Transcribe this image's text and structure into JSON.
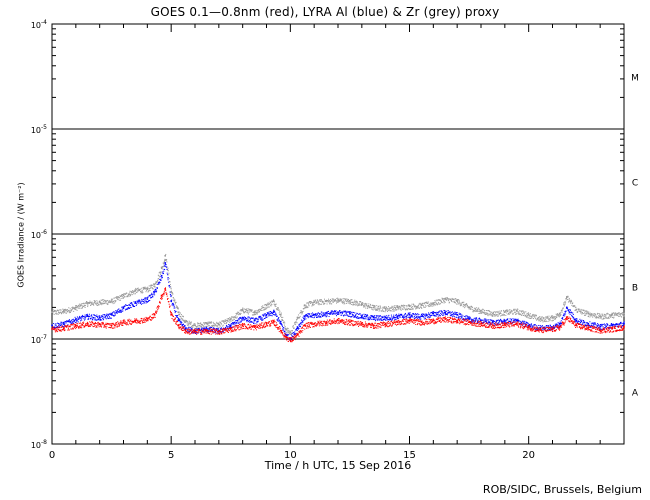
{
  "chart_data": {
    "type": "scatter",
    "title": "GOES 0.1—0.8nm (red), LYRA Al (blue) & Zr (grey) proxy",
    "xlabel": "Time / h UTC, 15 Sep 2016",
    "ylabel": "GOES Irradiance / (W m⁻²)",
    "xlim": [
      0,
      24
    ],
    "ylim": [
      1e-08,
      0.0001
    ],
    "yscale": "log",
    "x_ticks": [
      0,
      5,
      10,
      15,
      20
    ],
    "y_ticks": [
      {
        "value": 0.0001,
        "base": "10",
        "exp": "-4"
      },
      {
        "value": 1e-05,
        "base": "10",
        "exp": "-5"
      },
      {
        "value": 1e-06,
        "base": "10",
        "exp": "-6"
      },
      {
        "value": 1e-07,
        "base": "10",
        "exp": "-7"
      },
      {
        "value": 1e-08,
        "base": "10",
        "exp": "-8"
      }
    ],
    "flare_class_lines": [
      1e-07,
      1e-06,
      1e-05
    ],
    "flare_classes": [
      {
        "label": "M",
        "value": 3.16e-05
      },
      {
        "label": "C",
        "value": 3.16e-06
      },
      {
        "label": "B",
        "value": 3.16e-07
      },
      {
        "label": "A",
        "value": 3.16e-08
      }
    ],
    "series": [
      {
        "color": "#ff0000",
        "x": [
          0,
          0.5,
          1,
          1.5,
          2,
          2.5,
          3,
          3.5,
          4,
          4.3,
          4.6,
          4.75,
          5,
          5.3,
          5.6,
          6,
          6.5,
          7,
          7.5,
          8,
          8.5,
          9,
          9.3,
          9.6,
          9.8,
          10,
          10.3,
          10.6,
          11,
          11.5,
          12,
          12.5,
          13,
          13.5,
          14,
          14.5,
          15,
          15.5,
          16,
          16.5,
          17,
          17.5,
          18,
          18.5,
          19,
          19.5,
          20,
          20.5,
          21,
          21.3,
          21.6,
          22,
          22.5,
          23,
          23.5,
          24
        ],
        "y": [
          1.25e-07,
          1.28e-07,
          1.35e-07,
          1.4e-07,
          1.38e-07,
          1.35e-07,
          1.45e-07,
          1.5e-07,
          1.55e-07,
          1.7e-07,
          2.6e-07,
          3e-07,
          1.7e-07,
          1.35e-07,
          1.2e-07,
          1.18e-07,
          1.2e-07,
          1.18e-07,
          1.25e-07,
          1.35e-07,
          1.3e-07,
          1.4e-07,
          1.45e-07,
          1.2e-07,
          1.05e-07,
          9.8e-08,
          1.1e-07,
          1.35e-07,
          1.4e-07,
          1.45e-07,
          1.5e-07,
          1.45e-07,
          1.4e-07,
          1.35e-07,
          1.4e-07,
          1.45e-07,
          1.5e-07,
          1.45e-07,
          1.5e-07,
          1.55e-07,
          1.5e-07,
          1.45e-07,
          1.4e-07,
          1.35e-07,
          1.38e-07,
          1.4e-07,
          1.3e-07,
          1.22e-07,
          1.25e-07,
          1.3e-07,
          1.6e-07,
          1.35e-07,
          1.28e-07,
          1.22e-07,
          1.25e-07,
          1.3e-07
        ]
      },
      {
        "color": "#0000ff",
        "x": [
          0,
          0.5,
          1,
          1.5,
          2,
          2.5,
          3,
          3.5,
          4,
          4.3,
          4.6,
          4.75,
          5,
          5.3,
          5.6,
          6,
          6.5,
          7,
          7.5,
          8,
          8.5,
          9,
          9.3,
          9.6,
          9.8,
          10,
          10.3,
          10.6,
          11,
          11.5,
          12,
          12.5,
          13,
          13.5,
          14,
          14.5,
          15,
          15.5,
          16,
          16.5,
          17,
          17.5,
          18,
          18.5,
          19,
          19.5,
          20,
          20.5,
          21,
          21.3,
          21.6,
          22,
          22.5,
          23,
          23.5,
          24
        ],
        "y": [
          1.35e-07,
          1.4e-07,
          1.55e-07,
          1.65e-07,
          1.6e-07,
          1.7e-07,
          2e-07,
          2.2e-07,
          2.4e-07,
          2.8e-07,
          4e-07,
          5.3e-07,
          2.3e-07,
          1.5e-07,
          1.25e-07,
          1.2e-07,
          1.25e-07,
          1.2e-07,
          1.35e-07,
          1.6e-07,
          1.5e-07,
          1.7e-07,
          1.8e-07,
          1.4e-07,
          1.1e-07,
          1.02e-07,
          1.3e-07,
          1.65e-07,
          1.7e-07,
          1.75e-07,
          1.8e-07,
          1.75e-07,
          1.65e-07,
          1.6e-07,
          1.6e-07,
          1.65e-07,
          1.7e-07,
          1.65e-07,
          1.75e-07,
          1.8e-07,
          1.7e-07,
          1.55e-07,
          1.5e-07,
          1.45e-07,
          1.48e-07,
          1.5e-07,
          1.35e-07,
          1.28e-07,
          1.3e-07,
          1.4e-07,
          2e-07,
          1.5e-07,
          1.4e-07,
          1.32e-07,
          1.35e-07,
          1.4e-07
        ]
      },
      {
        "color": "#999999",
        "x": [
          0,
          0.5,
          1,
          1.5,
          2,
          2.5,
          3,
          3.5,
          4,
          4.3,
          4.6,
          4.75,
          5,
          5.3,
          5.6,
          6,
          6.5,
          7,
          7.5,
          8,
          8.5,
          9,
          9.3,
          9.6,
          9.8,
          10,
          10.3,
          10.6,
          11,
          11.5,
          12,
          12.5,
          13,
          13.5,
          14,
          14.5,
          15,
          15.5,
          16,
          16.5,
          17,
          17.5,
          18,
          18.5,
          19,
          19.5,
          20,
          20.5,
          21,
          21.3,
          21.6,
          22,
          22.5,
          23,
          23.5,
          24
        ],
        "y": [
          1.8e-07,
          1.85e-07,
          2e-07,
          2.2e-07,
          2.25e-07,
          2.3e-07,
          2.6e-07,
          2.9e-07,
          3e-07,
          3.3e-07,
          4.8e-07,
          6.2e-07,
          2.8e-07,
          1.8e-07,
          1.45e-07,
          1.35e-07,
          1.4e-07,
          1.38e-07,
          1.55e-07,
          1.9e-07,
          1.8e-07,
          2.1e-07,
          2.3e-07,
          1.7e-07,
          1.25e-07,
          1.15e-07,
          1.6e-07,
          2.1e-07,
          2.25e-07,
          2.3e-07,
          2.35e-07,
          2.3e-07,
          2.15e-07,
          2e-07,
          1.95e-07,
          2e-07,
          2.05e-07,
          2.1e-07,
          2.2e-07,
          2.4e-07,
          2.3e-07,
          2e-07,
          1.85e-07,
          1.75e-07,
          1.8e-07,
          1.85e-07,
          1.7e-07,
          1.55e-07,
          1.6e-07,
          1.75e-07,
          2.5e-07,
          1.9e-07,
          1.75e-07,
          1.65e-07,
          1.7e-07,
          1.75e-07
        ]
      }
    ]
  },
  "footer": {
    "credit": "ROB/SIDC, Brussels, Belgium"
  }
}
